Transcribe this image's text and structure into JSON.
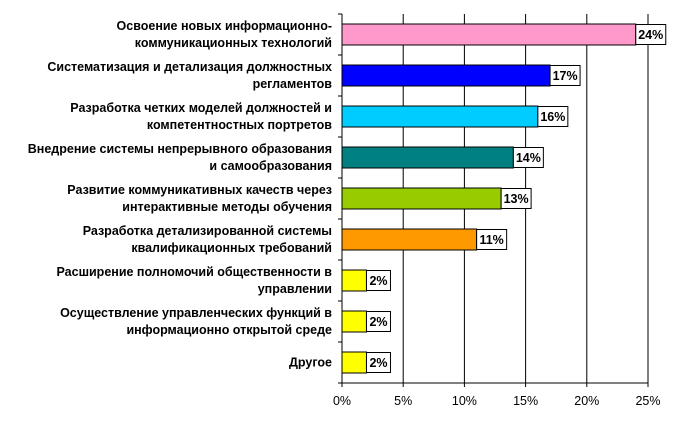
{
  "chart_data": {
    "type": "bar",
    "orientation": "horizontal",
    "categories": [
      [
        "Освоение новых информационно-",
        "коммуникационных технологий"
      ],
      [
        "Систематизация и детализация должностных",
        "регламентов"
      ],
      [
        "Разработка четких моделей должностей и",
        "компетентностных портретов"
      ],
      [
        "Внедрение системы непрерывного образования",
        "и самообразования"
      ],
      [
        "Развитие коммуникативных качеств через",
        "интерактивные методы обучения"
      ],
      [
        "Разработка детализированной системы",
        "квалификационных требований"
      ],
      [
        "Расширение полномочий общественности в",
        "управлении"
      ],
      [
        "Осуществление управленческих функций в",
        "информационно открытой среде"
      ],
      [
        "Другое"
      ]
    ],
    "values": [
      24,
      17,
      16,
      14,
      13,
      11,
      2,
      2,
      2
    ],
    "value_labels": [
      "24%",
      "17%",
      "16%",
      "14%",
      "13%",
      "11%",
      "2%",
      "2%",
      "2%"
    ],
    "colors": [
      "#FF99CC",
      "#0000FF",
      "#00CCFF",
      "#008080",
      "#99CC00",
      "#FF9900",
      "#FFFF00",
      "#FFFF00",
      "#FFFF00"
    ],
    "xlim": [
      0,
      25
    ],
    "xticks": [
      0,
      5,
      10,
      15,
      20,
      25
    ],
    "xtick_labels": [
      "0%",
      "5%",
      "10%",
      "15%",
      "20%",
      "25%"
    ],
    "grid": true,
    "title": "",
    "xlabel": "",
    "ylabel": ""
  }
}
